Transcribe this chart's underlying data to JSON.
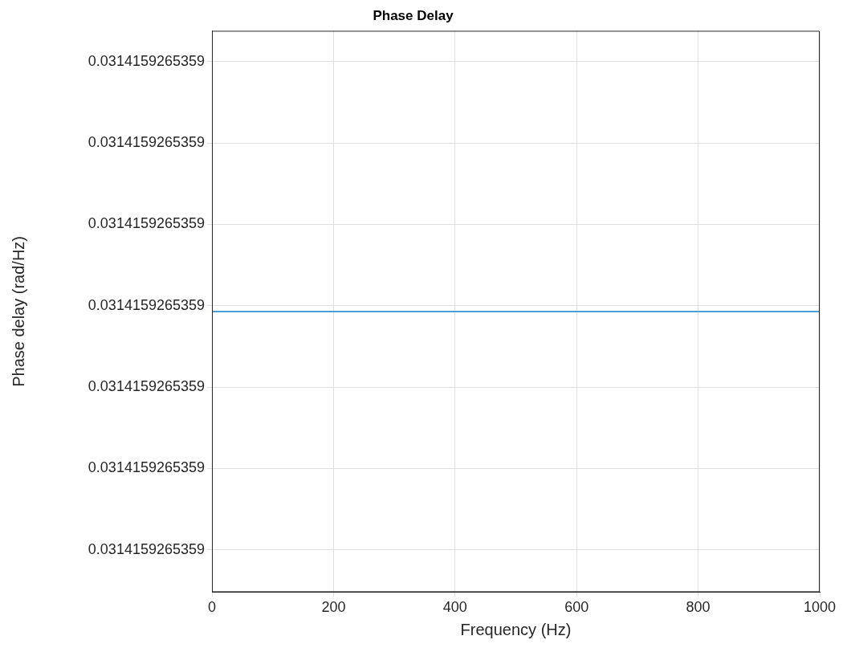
{
  "chart_data": {
    "type": "line",
    "title": "Phase Delay",
    "xlabel": "Frequency (Hz)",
    "ylabel": "Phase delay (rad/Hz)",
    "x": [
      0,
      1000
    ],
    "series": [
      {
        "color": "#4a9fd8",
        "values": [
          0.0314159265358993,
          0.0314159265358993
        ]
      }
    ],
    "xlim": [
      0,
      1000
    ],
    "xticks": [
      0,
      200,
      400,
      600,
      800,
      1000
    ],
    "ylim": [
      0.0314159265358648,
      0.0314159265359338
    ],
    "yticks": [
      {
        "value": 0.03141592653587,
        "label": "0.0314159265359"
      },
      {
        "value": 0.03141592653588,
        "label": "0.0314159265359"
      },
      {
        "value": 0.03141592653589,
        "label": "0.0314159265359"
      },
      {
        "value": 0.0314159265359,
        "label": "0.0314159265359"
      },
      {
        "value": 0.03141592653591,
        "label": "0.0314159265359"
      },
      {
        "value": 0.03141592653592,
        "label": "0.0314159265359"
      },
      {
        "value": 0.03141592653593,
        "label": "0.0314159265359"
      }
    ],
    "grid": true,
    "legend": false,
    "marker": "none",
    "line_style": "solid"
  }
}
